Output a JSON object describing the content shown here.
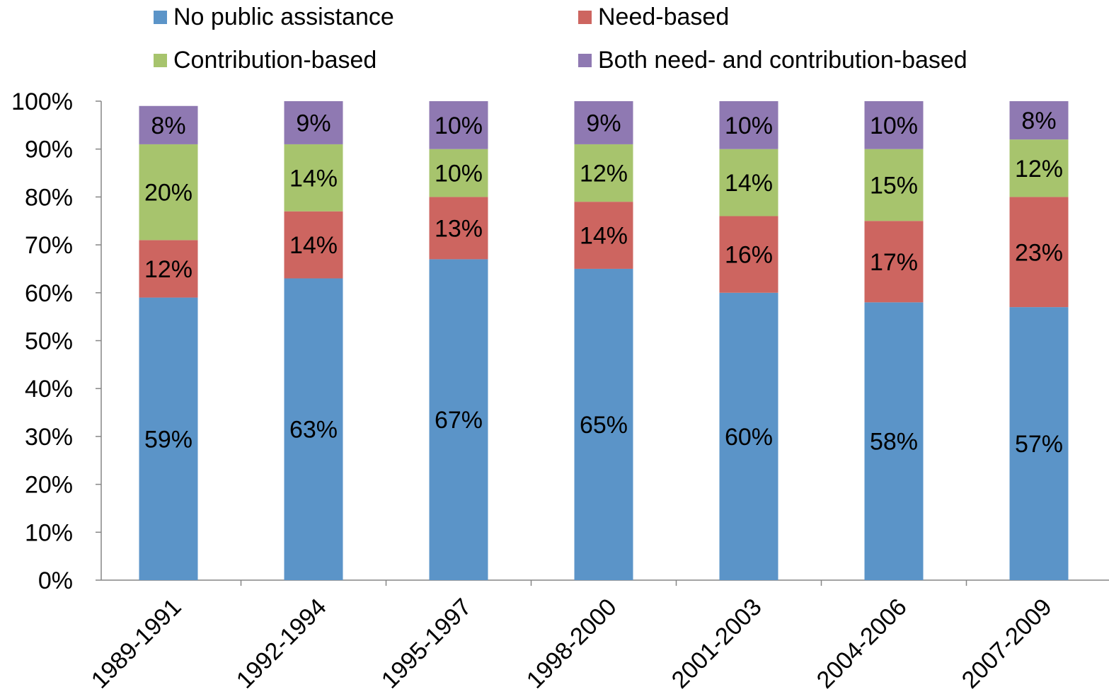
{
  "chart_data": {
    "type": "bar",
    "stacked": true,
    "categories": [
      "1989-1991",
      "1992-1994",
      "1995-1997",
      "1998-2000",
      "2001-2003",
      "2004-2006",
      "2007-2009"
    ],
    "series": [
      {
        "name": "No public assistance",
        "color": "#5B94C8",
        "values": [
          59,
          63,
          67,
          65,
          60,
          58,
          57
        ],
        "labels": [
          "59%",
          "63%",
          "67%",
          "65%",
          "60%",
          "58%",
          "57%"
        ]
      },
      {
        "name": "Need-based",
        "color": "#CD6560",
        "values": [
          12,
          14,
          13,
          14,
          16,
          17,
          23
        ],
        "labels": [
          "12%",
          "14%",
          "13%",
          "14%",
          "16%",
          "17%",
          "23%"
        ]
      },
      {
        "name": "Contribution-based",
        "color": "#A7C46D",
        "values": [
          20,
          14,
          10,
          12,
          14,
          15,
          12
        ],
        "labels": [
          "20%",
          "14%",
          "10%",
          "12%",
          "14%",
          "15%",
          "12%"
        ]
      },
      {
        "name": "Both need- and contribution-based",
        "color": "#8F79B2",
        "values": [
          8,
          9,
          10,
          9,
          10,
          10,
          8
        ],
        "labels": [
          "8%",
          "9%",
          "10%",
          "9%",
          "10%",
          "10%",
          "8%"
        ]
      }
    ],
    "ylim": [
      0,
      100
    ],
    "yticks": [
      "0%",
      "10%",
      "20%",
      "30%",
      "40%",
      "50%",
      "60%",
      "70%",
      "80%",
      "90%",
      "100%"
    ],
    "xlabel": "",
    "ylabel": "",
    "grid": false,
    "legend_position": "top"
  }
}
